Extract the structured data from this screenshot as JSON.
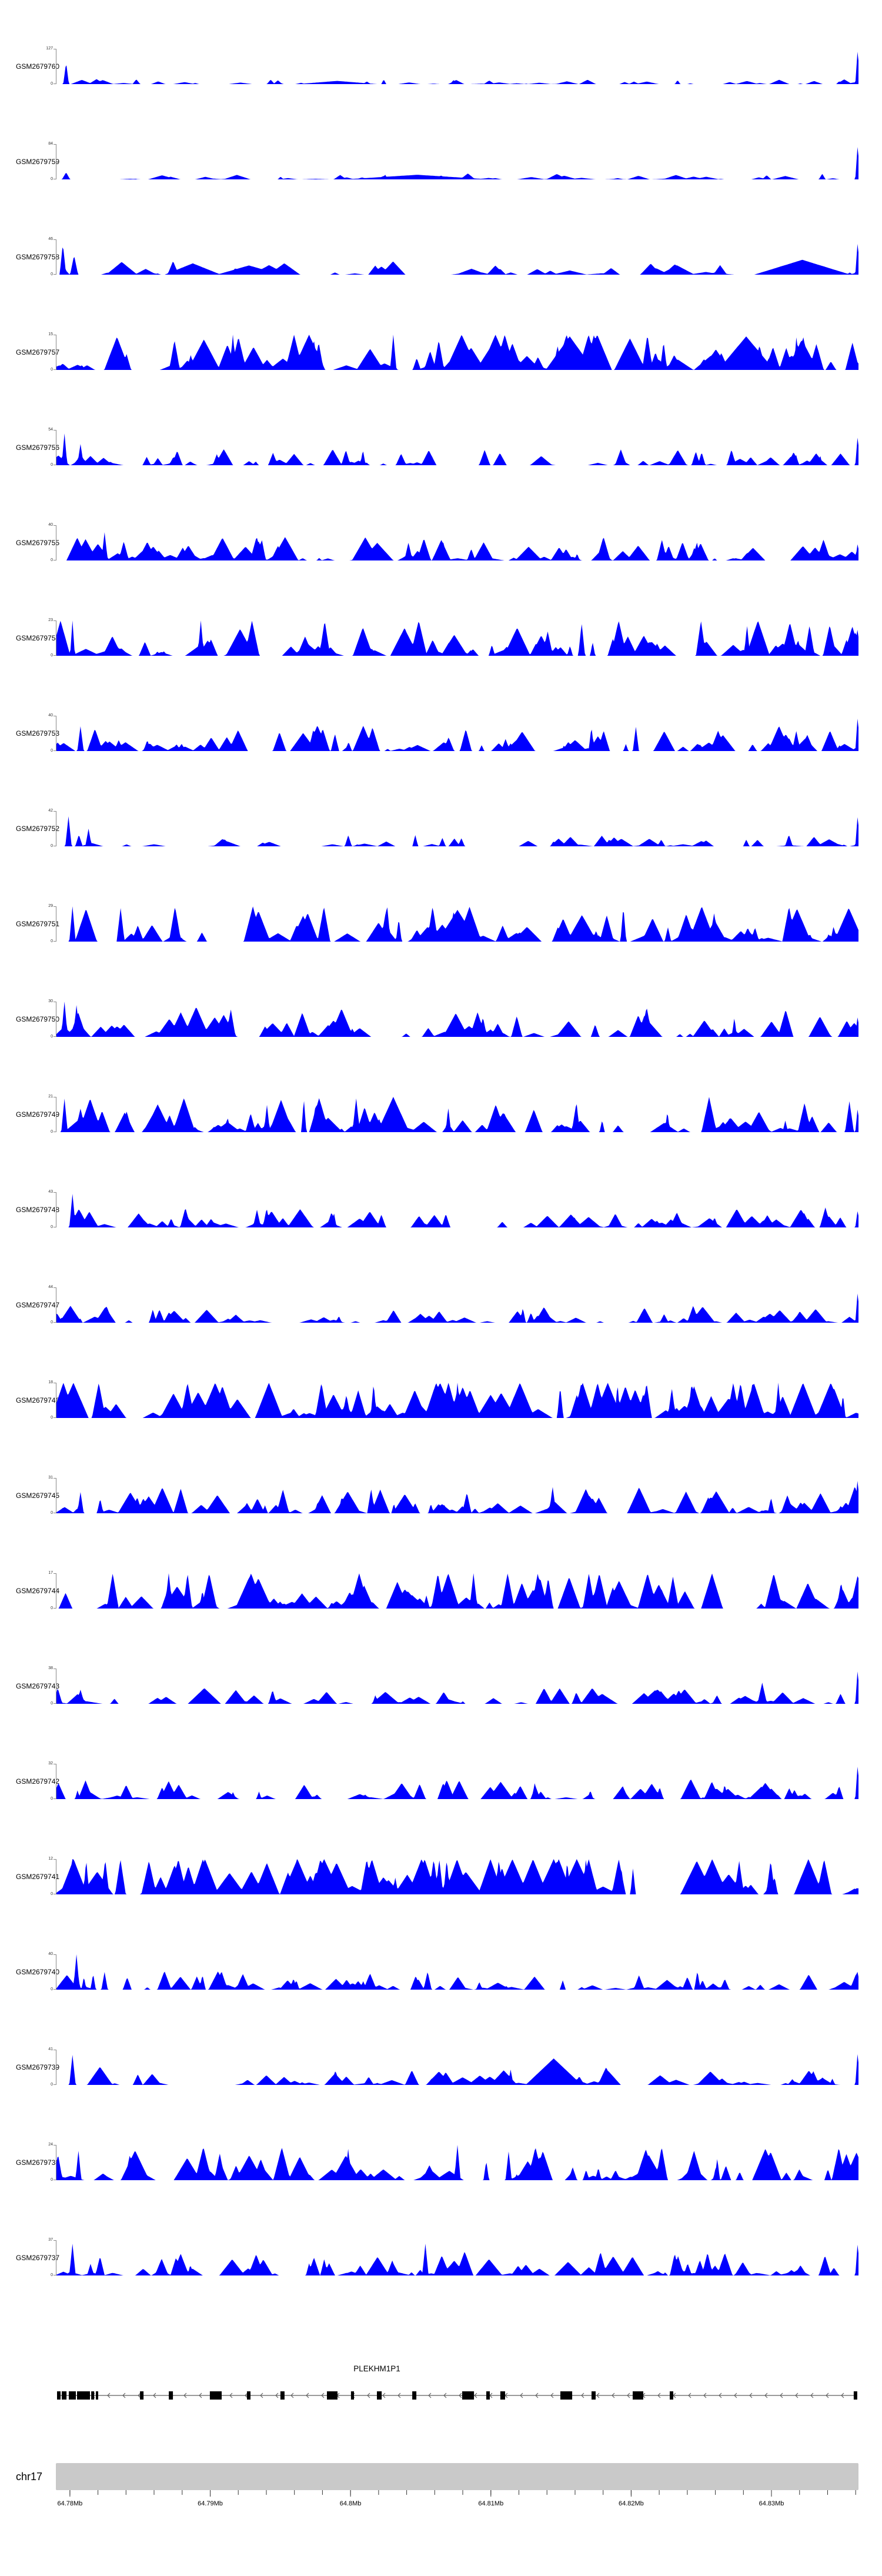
{
  "chart_data": {
    "type": "area",
    "title": "",
    "description": "Genome browser read-coverage tracks over chr17:64.78-64.83Mb with PLEKHM1P1 gene model",
    "colors": {
      "coverage": "#0000FF",
      "gene": "#000000",
      "gene_line": "#5f5f5f",
      "axis_bar": "#C9C9C9",
      "tick": "#333333"
    },
    "y_zero_label": "0",
    "tracks": [
      {
        "label": "GSM2679760",
        "ymax": 127,
        "seed": 760,
        "peaks": 55,
        "amp": 0.05,
        "pw": 0.012,
        "spikes": [
          {
            "x": 0.012,
            "h": 0.62,
            "w": 0.0035
          },
          {
            "x": 0.05,
            "h": 0.14,
            "w": 0.01
          },
          {
            "x": 0.35,
            "h": 0.09,
            "w": 0.05
          },
          {
            "x": 0.999,
            "h": 1,
            "w": 0.003
          }
        ]
      },
      {
        "label": "GSM2679759",
        "ymax": 84,
        "seed": 759,
        "peaks": 55,
        "amp": 0.06,
        "pw": 0.015,
        "spikes": [
          {
            "x": 0.012,
            "h": 0.2,
            "w": 0.005
          },
          {
            "x": 0.45,
            "h": 0.13,
            "w": 0.09
          },
          {
            "x": 0.999,
            "h": 1,
            "w": 0.003
          }
        ]
      },
      {
        "label": "GSM2679758",
        "ymax": 46,
        "seed": 758,
        "peaks": 50,
        "amp": 0.14,
        "pw": 0.02,
        "spikes": [
          {
            "x": 0.008,
            "h": 0.88,
            "w": 0.004
          },
          {
            "x": 0.022,
            "h": 0.55,
            "w": 0.005
          },
          {
            "x": 0.17,
            "h": 0.32,
            "w": 0.035
          },
          {
            "x": 0.24,
            "h": 0.26,
            "w": 0.04
          },
          {
            "x": 0.93,
            "h": 0.42,
            "w": 0.06
          },
          {
            "x": 0.999,
            "h": 0.95,
            "w": 0.003
          }
        ]
      },
      {
        "label": "GSM2679757",
        "ymax": 15,
        "seed": 757,
        "peaks": 95,
        "amp": 0.5,
        "pw": 0.018,
        "spikes": [
          {
            "x": 0.22,
            "h": 1,
            "w": 0.004
          },
          {
            "x": 0.42,
            "h": 1,
            "w": 0.004
          },
          {
            "x": 0.64,
            "h": 0.95,
            "w": 0.03
          },
          {
            "x": 0.86,
            "h": 0.95,
            "w": 0.035
          }
        ]
      },
      {
        "label": "GSM2679756",
        "ymax": 54,
        "seed": 756,
        "peaks": 75,
        "amp": 0.16,
        "pw": 0.012,
        "spikes": [
          {
            "x": 0.01,
            "h": 0.9,
            "w": 0.0035
          },
          {
            "x": 0.03,
            "h": 0.6,
            "w": 0.004
          },
          {
            "x": 0.27,
            "h": 0.35,
            "w": 0.006
          },
          {
            "x": 0.999,
            "h": 0.85,
            "w": 0.003
          }
        ]
      },
      {
        "label": "GSM2679755",
        "ymax": 40,
        "seed": 755,
        "peaks": 85,
        "amp": 0.24,
        "pw": 0.014,
        "spikes": [
          {
            "x": 0.06,
            "h": 0.8,
            "w": 0.004
          },
          {
            "x": 0.4,
            "h": 0.5,
            "w": 0.02
          },
          {
            "x": 0.999,
            "h": 0.5,
            "w": 0.003
          }
        ]
      },
      {
        "label": "GSM2679754",
        "ymax": 23,
        "seed": 754,
        "peaks": 95,
        "amp": 0.42,
        "pw": 0.016,
        "spikes": [
          {
            "x": 0.02,
            "h": 1,
            "w": 0.003
          },
          {
            "x": 0.18,
            "h": 1,
            "w": 0.004
          },
          {
            "x": 0.999,
            "h": 0.8,
            "w": 0.003
          }
        ]
      },
      {
        "label": "GSM2679753",
        "ymax": 40,
        "seed": 753,
        "peaks": 90,
        "amp": 0.26,
        "pw": 0.014,
        "spikes": [
          {
            "x": 0.03,
            "h": 0.7,
            "w": 0.004
          },
          {
            "x": 0.999,
            "h": 1,
            "w": 0.003
          }
        ]
      },
      {
        "label": "GSM2679752",
        "ymax": 42,
        "seed": 752,
        "peaks": 50,
        "amp": 0.12,
        "pw": 0.014,
        "spikes": [
          {
            "x": 0.015,
            "h": 0.85,
            "w": 0.004
          },
          {
            "x": 0.04,
            "h": 0.5,
            "w": 0.004
          },
          {
            "x": 0.68,
            "h": 0.3,
            "w": 0.01
          },
          {
            "x": 0.999,
            "h": 0.9,
            "w": 0.003
          }
        ]
      },
      {
        "label": "GSM2679751",
        "ymax": 29,
        "seed": 751,
        "peaks": 85,
        "amp": 0.4,
        "pw": 0.016,
        "spikes": [
          {
            "x": 0.02,
            "h": 1,
            "w": 0.004
          },
          {
            "x": 0.08,
            "h": 0.95,
            "w": 0.005
          },
          {
            "x": 0.5,
            "h": 0.9,
            "w": 0.025
          },
          {
            "x": 0.82,
            "h": 0.8,
            "w": 0.006
          }
        ]
      },
      {
        "label": "GSM2679750",
        "ymax": 30,
        "seed": 750,
        "peaks": 90,
        "amp": 0.3,
        "pw": 0.014,
        "spikes": [
          {
            "x": 0.01,
            "h": 1,
            "w": 0.004
          },
          {
            "x": 0.025,
            "h": 0.9,
            "w": 0.004
          },
          {
            "x": 0.999,
            "h": 0.6,
            "w": 0.003
          }
        ]
      },
      {
        "label": "GSM2679749",
        "ymax": 21,
        "seed": 749,
        "peaks": 90,
        "amp": 0.42,
        "pw": 0.015,
        "spikes": [
          {
            "x": 0.01,
            "h": 0.95,
            "w": 0.004
          },
          {
            "x": 0.42,
            "h": 1,
            "w": 0.02
          },
          {
            "x": 0.999,
            "h": 0.7,
            "w": 0.003
          }
        ]
      },
      {
        "label": "GSM2679748",
        "ymax": 43,
        "seed": 748,
        "peaks": 85,
        "amp": 0.2,
        "pw": 0.013,
        "spikes": [
          {
            "x": 0.02,
            "h": 0.95,
            "w": 0.004
          },
          {
            "x": 0.25,
            "h": 0.5,
            "w": 0.005
          },
          {
            "x": 0.999,
            "h": 0.5,
            "w": 0.003
          }
        ]
      },
      {
        "label": "GSM2679747",
        "ymax": 44,
        "seed": 747,
        "peaks": 85,
        "amp": 0.17,
        "pw": 0.013,
        "spikes": [
          {
            "x": 0.02,
            "h": 0.35,
            "w": 0.005
          },
          {
            "x": 0.999,
            "h": 0.9,
            "w": 0.003
          }
        ]
      },
      {
        "label": "GSM2679746",
        "ymax": 18,
        "seed": 746,
        "peaks": 105,
        "amp": 0.55,
        "pw": 0.016,
        "spikes": [
          {
            "x": 0.5,
            "h": 1,
            "w": 0.004
          },
          {
            "x": 0.9,
            "h": 1,
            "w": 0.004
          }
        ]
      },
      {
        "label": "GSM2679745",
        "ymax": 31,
        "seed": 745,
        "peaks": 90,
        "amp": 0.27,
        "pw": 0.014,
        "spikes": [
          {
            "x": 0.03,
            "h": 0.6,
            "w": 0.004
          },
          {
            "x": 0.999,
            "h": 1,
            "w": 0.003
          }
        ]
      },
      {
        "label": "GSM2679744",
        "ymax": 17,
        "seed": 744,
        "peaks": 100,
        "amp": 0.5,
        "pw": 0.016,
        "spikes": [
          {
            "x": 0.14,
            "h": 1,
            "w": 0.005
          },
          {
            "x": 0.52,
            "h": 1,
            "w": 0.005
          }
        ]
      },
      {
        "label": "GSM2679743",
        "ymax": 38,
        "seed": 743,
        "peaks": 60,
        "amp": 0.18,
        "pw": 0.018,
        "spikes": [
          {
            "x": 0.03,
            "h": 0.4,
            "w": 0.005
          },
          {
            "x": 0.88,
            "h": 0.6,
            "w": 0.006
          },
          {
            "x": 0.999,
            "h": 1,
            "w": 0.003
          }
        ]
      },
      {
        "label": "GSM2679742",
        "ymax": 32,
        "seed": 742,
        "peaks": 85,
        "amp": 0.2,
        "pw": 0.013,
        "spikes": [
          {
            "x": 0.999,
            "h": 1,
            "w": 0.003
          }
        ]
      },
      {
        "label": "GSM2679741",
        "ymax": 12,
        "seed": 741,
        "peaks": 100,
        "amp": 0.65,
        "pw": 0.018,
        "spikes": [
          {
            "x": 0.02,
            "h": 1,
            "w": 0.005
          },
          {
            "x": 0.3,
            "h": 1,
            "w": 0.01
          },
          {
            "x": 0.62,
            "h": 1,
            "w": 0.02
          }
        ]
      },
      {
        "label": "GSM2679740",
        "ymax": 40,
        "seed": 740,
        "peaks": 85,
        "amp": 0.2,
        "pw": 0.013,
        "spikes": [
          {
            "x": 0.025,
            "h": 1,
            "w": 0.004
          },
          {
            "x": 0.06,
            "h": 0.5,
            "w": 0.004
          },
          {
            "x": 0.999,
            "h": 0.55,
            "w": 0.003
          }
        ]
      },
      {
        "label": "GSM2679739",
        "ymax": 41,
        "seed": 739,
        "peaks": 65,
        "amp": 0.18,
        "pw": 0.015,
        "spikes": [
          {
            "x": 0.02,
            "h": 0.85,
            "w": 0.004
          },
          {
            "x": 0.62,
            "h": 0.75,
            "w": 0.035
          },
          {
            "x": 0.999,
            "h": 0.95,
            "w": 0.003
          }
        ]
      },
      {
        "label": "GSM2679738",
        "ymax": 24,
        "seed": 738,
        "peaks": 90,
        "amp": 0.34,
        "pw": 0.015,
        "spikes": [
          {
            "x": 0.5,
            "h": 1,
            "w": 0.004
          },
          {
            "x": 0.999,
            "h": 0.6,
            "w": 0.003
          }
        ]
      },
      {
        "label": "GSM2679737",
        "ymax": 37,
        "seed": 737,
        "peaks": 90,
        "amp": 0.24,
        "pw": 0.014,
        "spikes": [
          {
            "x": 0.02,
            "h": 0.9,
            "w": 0.004
          },
          {
            "x": 0.46,
            "h": 0.9,
            "w": 0.004
          },
          {
            "x": 0.999,
            "h": 0.95,
            "w": 0.003
          }
        ]
      }
    ],
    "gene_track": {
      "name": "PLEKHM1P1",
      "strand": "reverse",
      "exons": [
        {
          "x": 0.0015,
          "w": 0.0044
        },
        {
          "x": 0.0073,
          "w": 0.0059
        },
        {
          "x": 0.0161,
          "w": 0.0088
        },
        {
          "x": 0.0264,
          "w": 0.0161
        },
        {
          "x": 0.044,
          "w": 0.0037
        },
        {
          "x": 0.0498,
          "w": 0.0029
        },
        {
          "x": 0.1048,
          "w": 0.0044
        },
        {
          "x": 0.1407,
          "w": 0.0051
        },
        {
          "x": 0.1919,
          "w": 0.0147
        },
        {
          "x": 0.2381,
          "w": 0.0044
        },
        {
          "x": 0.2798,
          "w": 0.0051
        },
        {
          "x": 0.3377,
          "w": 0.0132
        },
        {
          "x": 0.3677,
          "w": 0.0037
        },
        {
          "x": 0.4,
          "w": 0.0059
        },
        {
          "x": 0.444,
          "w": 0.0051
        },
        {
          "x": 0.5062,
          "w": 0.0147
        },
        {
          "x": 0.5363,
          "w": 0.0044
        },
        {
          "x": 0.5538,
          "w": 0.0059
        },
        {
          "x": 0.6286,
          "w": 0.0147
        },
        {
          "x": 0.6674,
          "w": 0.0051
        },
        {
          "x": 0.7187,
          "w": 0.0132
        },
        {
          "x": 0.7648,
          "w": 0.0044
        },
        {
          "x": 0.9941,
          "w": 0.0044
        }
      ]
    },
    "axis": {
      "chromosome": "chr17",
      "start": 64.779,
      "end": 64.8362,
      "minor_step": 0.002,
      "major_ticks": [
        {
          "value": 64.78,
          "label": "64.78Mb"
        },
        {
          "value": 64.79,
          "label": "64.79Mb"
        },
        {
          "value": 64.8,
          "label": "64.8Mb"
        },
        {
          "value": 64.81,
          "label": "64.81Mb"
        },
        {
          "value": 64.82,
          "label": "64.82Mb"
        },
        {
          "value": 64.83,
          "label": "64.83Mb"
        }
      ]
    }
  }
}
